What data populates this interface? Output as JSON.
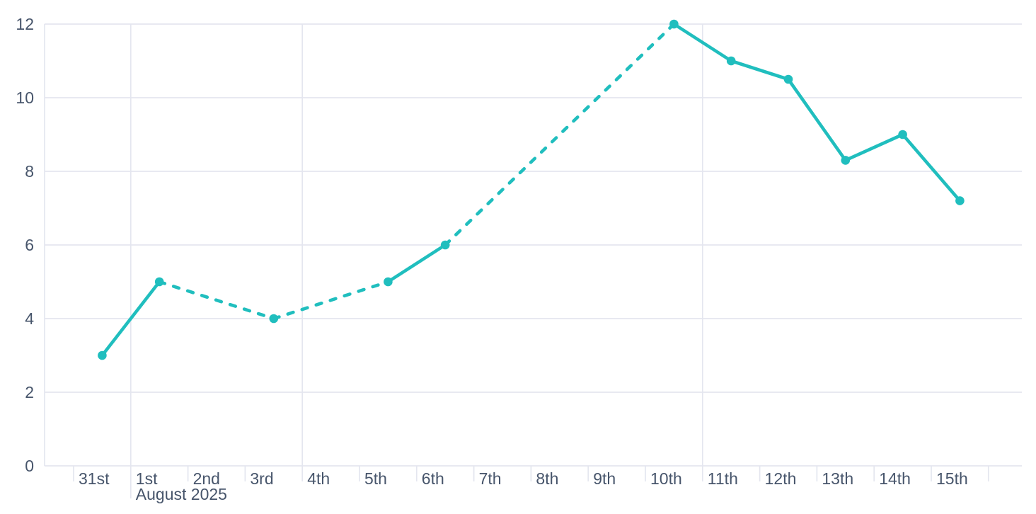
{
  "chart_data": {
    "type": "line",
    "title": "",
    "x_axis": {
      "categories": [
        "31st",
        "1st",
        "2nd",
        "3rd",
        "4th",
        "5th",
        "6th",
        "7th",
        "8th",
        "9th",
        "10th",
        "11th",
        "12th",
        "13th",
        "14th",
        "15th"
      ],
      "secondary_label": "August 2025",
      "month_start_category": "1st",
      "week_start_categories": [
        "4th",
        "11th"
      ]
    },
    "y_axis": {
      "ticks": [
        0,
        2,
        4,
        6,
        8,
        10,
        12
      ],
      "range": [
        0,
        12
      ]
    },
    "series": [
      {
        "points": [
          {
            "category": "31st",
            "day_index": 0,
            "value": 3
          },
          {
            "category": "1st",
            "day_index": 1,
            "value": 5
          },
          {
            "category": "3rd",
            "day_index": 3,
            "value": 4
          },
          {
            "category": "5th",
            "day_index": 5,
            "value": 5
          },
          {
            "category": "6th",
            "day_index": 6,
            "value": 6
          },
          {
            "category": "10th",
            "day_index": 10,
            "value": 12
          },
          {
            "category": "11th",
            "day_index": 11,
            "value": 11
          },
          {
            "category": "12th",
            "day_index": 12,
            "value": 10.5
          },
          {
            "category": "13th",
            "day_index": 13,
            "value": 8.3
          },
          {
            "category": "14th",
            "day_index": 14,
            "value": 9
          },
          {
            "category": "15th",
            "day_index": 15,
            "value": 7.2
          }
        ],
        "segment_styles": [
          "solid",
          "dashed",
          "dashed",
          "solid",
          "dashed",
          "solid",
          "solid",
          "solid",
          "solid",
          "solid"
        ]
      }
    ],
    "grid": true,
    "legend": "none",
    "colors": {
      "line": "#20bebe",
      "grid": "#e4e6ef",
      "text": "#47556b",
      "background": "#ffffff"
    }
  }
}
